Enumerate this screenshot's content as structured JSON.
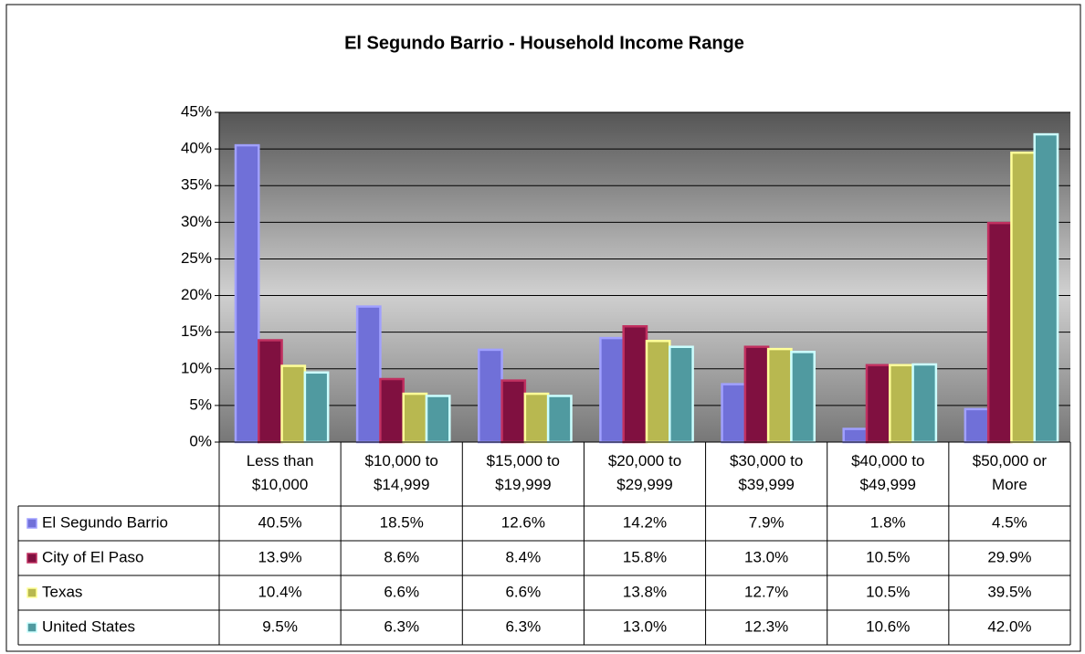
{
  "chart_data": {
    "type": "bar",
    "title": "El Segundo Barrio - Household Income Range",
    "categories": [
      "Less than $10,000",
      "$10,000 to $14,999",
      "$15,000 to $19,999",
      "$20,000 to $29,999",
      "$30,000 to $39,999",
      "$40,000 to $49,999",
      "$50,000 or More"
    ],
    "series": [
      {
        "name": "El Segundo Barrio",
        "color": "#7070d8",
        "edge": "#a0a0ff",
        "values": [
          40.5,
          18.5,
          12.6,
          14.2,
          7.9,
          1.8,
          4.5
        ],
        "value_labels": [
          "40.5%",
          "18.5%",
          "12.6%",
          "14.2%",
          "7.9%",
          "1.8%",
          "4.5%"
        ]
      },
      {
        "name": "City of El Paso",
        "color": "#801040",
        "edge": "#c03060",
        "values": [
          13.9,
          8.6,
          8.4,
          15.8,
          13.0,
          10.5,
          29.9
        ],
        "value_labels": [
          "13.9%",
          "8.6%",
          "8.4%",
          "15.8%",
          "13.0%",
          "10.5%",
          "29.9%"
        ]
      },
      {
        "name": "Texas",
        "color": "#b8b850",
        "edge": "#ffff99",
        "values": [
          10.4,
          6.6,
          6.6,
          13.8,
          12.7,
          10.5,
          39.5
        ],
        "value_labels": [
          "10.4%",
          "6.6%",
          "6.6%",
          "13.8%",
          "12.7%",
          "10.5%",
          "39.5%"
        ]
      },
      {
        "name": "United States",
        "color": "#509aa0",
        "edge": "#ccffff",
        "values": [
          9.5,
          6.3,
          6.3,
          13.0,
          12.3,
          10.6,
          42.0
        ],
        "value_labels": [
          "9.5%",
          "6.3%",
          "6.3%",
          "13.0%",
          "12.3%",
          "10.6%",
          "42.0%"
        ]
      }
    ],
    "ylim": [
      0,
      45
    ],
    "yticks": [
      {
        "value": 0,
        "label": "0%"
      },
      {
        "value": 5,
        "label": "5%"
      },
      {
        "value": 10,
        "label": "10%"
      },
      {
        "value": 15,
        "label": "15%"
      },
      {
        "value": 20,
        "label": "20%"
      },
      {
        "value": 25,
        "label": "25%"
      },
      {
        "value": 30,
        "label": "30%"
      },
      {
        "value": 35,
        "label": "35%"
      },
      {
        "value": 40,
        "label": "40%"
      },
      {
        "value": 45,
        "label": "45%"
      }
    ],
    "grid": true
  }
}
